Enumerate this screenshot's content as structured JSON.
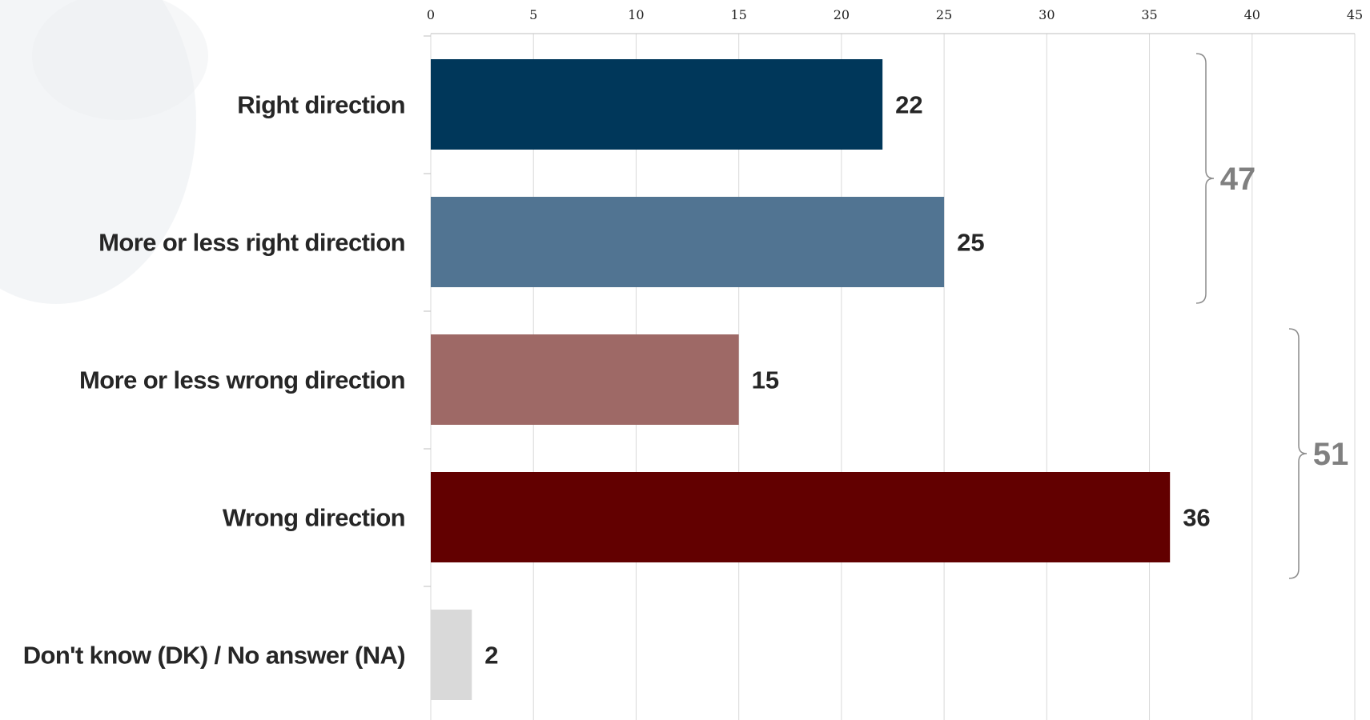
{
  "chart_data": {
    "type": "bar",
    "orientation": "horizontal",
    "categories": [
      "Right direction",
      "More or less right direction",
      "More or less wrong direction",
      "Wrong direction",
      "Don't know (DK) / No answer (NA)"
    ],
    "values": [
      22,
      25,
      15,
      36,
      2
    ],
    "value_labels": [
      "22",
      "25",
      "15",
      "36",
      "2"
    ],
    "colors": [
      "#00375a",
      "#4e7190",
      "#9c6663",
      "#620000",
      "#d9d9d9"
    ],
    "xlim": [
      0,
      45
    ],
    "x_ticks": [
      0,
      5,
      10,
      15,
      20,
      25,
      30,
      35,
      40,
      45
    ],
    "x_axis_position": "top",
    "grid": true,
    "title": "",
    "xlabel": "",
    "ylabel": "",
    "brackets": [
      {
        "label": "47",
        "from_category": 0,
        "to_category": 1
      },
      {
        "label": "51",
        "from_category": 2,
        "to_category": 3
      }
    ]
  }
}
